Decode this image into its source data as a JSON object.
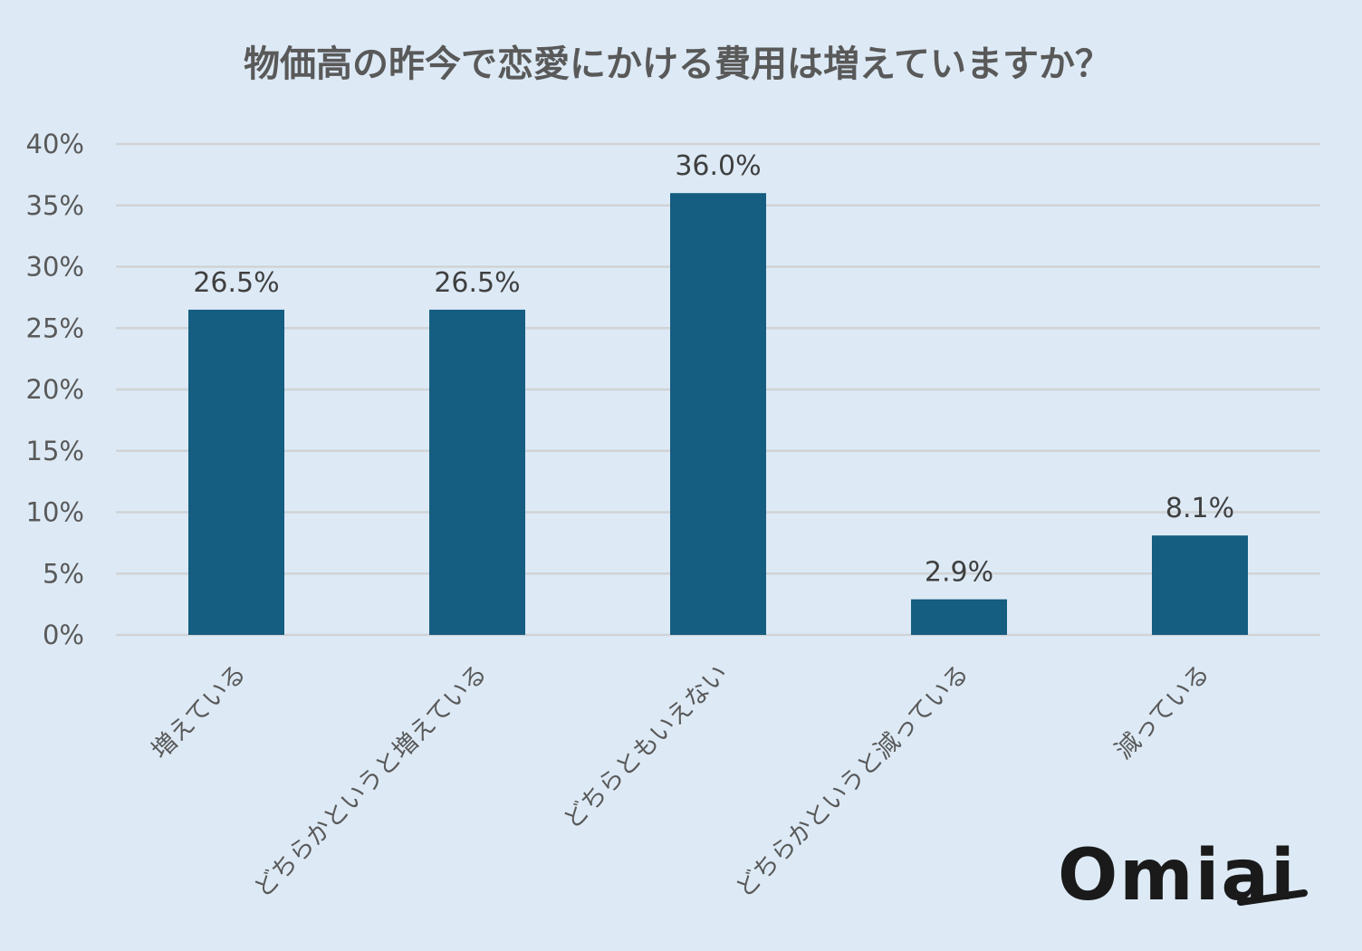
{
  "chart_data": {
    "type": "bar",
    "title": "物価高の昨今で恋愛にかける費用は増えていますか？",
    "categories": [
      "増えている",
      "どちらかというと増えている",
      "どちらともいえない",
      "どちらかというと減っている",
      "減っている"
    ],
    "values": [
      26.5,
      26.5,
      36.0,
      2.9,
      8.1
    ],
    "data_labels": [
      "26.5%",
      "26.5%",
      "36.0%",
      "2.9%",
      "8.1%"
    ],
    "y_ticks": [
      "0%",
      "5%",
      "10%",
      "15%",
      "20%",
      "25%",
      "30%",
      "35%",
      "40%"
    ],
    "ylim": [
      0,
      40
    ],
    "grid": true,
    "legend": "none",
    "xlabel": "",
    "ylabel": "",
    "bar_color": "#155d81",
    "gridline_color": "#d0d3d6",
    "background_color": "#ddeaf6"
  },
  "logo": {
    "text": "Omiai"
  }
}
